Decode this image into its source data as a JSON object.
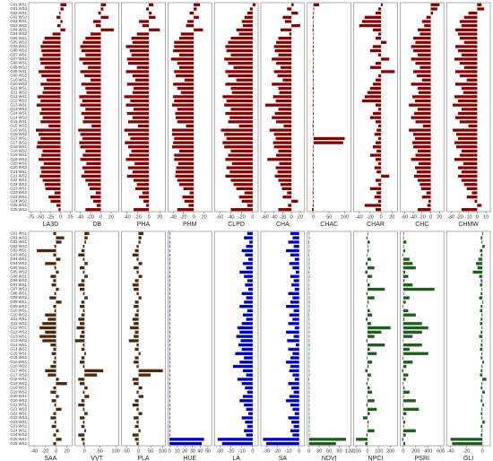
{
  "chart_data": [
    {
      "type": "bar",
      "orientation": "horizontal",
      "title": "LA3D",
      "color": "#8b0000",
      "categories": [
        "G01 WS1",
        "G01 WS2",
        "G02 WS1",
        "G02 WS2",
        "G03 WS1",
        "G03 WS2",
        "G04 WS1",
        "G04 WS2",
        "G05 WS1",
        "G05 WS2",
        "G06 WS1",
        "G06 WS2",
        "G07 WS1",
        "G07 WS2",
        "G08 WS1",
        "G08 WS2",
        "G09 WS1",
        "G09 WS2",
        "G10 WS1",
        "G10 WS2",
        "G11 WS1",
        "G11 WS2",
        "G12 WS1",
        "G12 WS2",
        "G13 WS1",
        "G13 WS2",
        "G14 WS1",
        "G14 WS2",
        "G15 WS1",
        "G15 WS2",
        "G16 WS1",
        "G16 WS2",
        "G17 WS1",
        "G17 WS2",
        "G18 WS1",
        "G18 WS2",
        "G19 WS1",
        "G19 WS2",
        "G20 WS1",
        "G20 WS2",
        "G21 WS1",
        "G21 WS2",
        "G22 WS1",
        "G22 WS2",
        "G23 WS1",
        "G23 WS2",
        "G24 WS1",
        "G24 WS2",
        "G25 WS1",
        "G25 WS2"
      ],
      "xlim": [
        -80,
        30
      ],
      "xticks": [
        -75,
        -50,
        -25,
        0,
        25
      ],
      "values": [
        15,
        8,
        -3,
        -10,
        5,
        -8,
        12,
        -20,
        -40,
        -45,
        -50,
        -48,
        -45,
        -52,
        -50,
        -40,
        -55,
        -48,
        -35,
        -50,
        -42,
        -45,
        -58,
        -50,
        -60,
        -48,
        -52,
        -45,
        -50,
        -30,
        -62,
        -55,
        -50,
        -58,
        -60,
        -45,
        -48,
        -55,
        -42,
        -50,
        -48,
        -52,
        -45,
        -40,
        -38,
        -15,
        -30,
        -25,
        -10,
        -5
      ]
    },
    {
      "type": "bar",
      "orientation": "horizontal",
      "title": "DB",
      "color": "#8b0000",
      "xlim": [
        -50,
        35
      ],
      "xticks": [
        -40,
        -20,
        0,
        20
      ],
      "values": [
        10,
        5,
        -5,
        15,
        -15,
        -10,
        25,
        -20,
        -30,
        -35,
        -40,
        -38,
        -30,
        -42,
        -35,
        -25,
        -40,
        -32,
        -20,
        -38,
        -30,
        -28,
        -42,
        -36,
        -40,
        -30,
        -38,
        -32,
        -35,
        -18,
        -44,
        -40,
        -36,
        -42,
        -40,
        -30,
        -35,
        -40,
        -28,
        -36,
        -32,
        -38,
        -30,
        -25,
        -22,
        -10,
        -20,
        -15,
        -8,
        -30
      ]
    },
    {
      "type": "bar",
      "orientation": "horizontal",
      "title": "PHA",
      "color": "#8b0000",
      "xlim": [
        -50,
        30
      ],
      "xticks": [
        -40,
        -20,
        0,
        20
      ],
      "values": [
        8,
        -5,
        5,
        12,
        -18,
        -12,
        20,
        -22,
        -32,
        -30,
        -42,
        -35,
        -32,
        -40,
        -38,
        -22,
        -42,
        -30,
        -25,
        -40,
        -28,
        -30,
        -45,
        -34,
        -42,
        -28,
        -40,
        -30,
        -38,
        -20,
        -45,
        -38,
        -34,
        -44,
        -38,
        -32,
        -36,
        -42,
        -26,
        -38,
        -30,
        -40,
        -28,
        -22,
        -25,
        -12,
        -18,
        -10,
        -5,
        -28
      ]
    },
    {
      "type": "bar",
      "orientation": "horizontal",
      "title": "PHM",
      "color": "#8b0000",
      "xlim": [
        -50,
        35
      ],
      "xticks": [
        -40,
        -20,
        0,
        20
      ],
      "values": [
        12,
        6,
        -8,
        10,
        -12,
        -15,
        18,
        -25,
        -28,
        -38,
        -38,
        -40,
        -28,
        -44,
        -32,
        -28,
        -38,
        -35,
        -18,
        -40,
        -32,
        -25,
        -40,
        -38,
        -42,
        -32,
        -36,
        -35,
        -32,
        -15,
        -42,
        -42,
        -38,
        -40,
        -42,
        -28,
        -38,
        -38,
        -30,
        -34,
        -35,
        -36,
        -32,
        -28,
        -20,
        -8,
        -22,
        -18,
        -10,
        -32
      ]
    },
    {
      "type": "bar",
      "orientation": "horizontal",
      "title": "CLPD",
      "color": "#8b0000",
      "xlim": [
        -70,
        10
      ],
      "xticks": [
        -60,
        -40,
        -20,
        0
      ],
      "values": [
        5,
        -5,
        -10,
        -15,
        -20,
        -18,
        -30,
        -25,
        -40,
        -45,
        -50,
        -48,
        -40,
        -52,
        -45,
        -35,
        -50,
        -45,
        -30,
        -50,
        -40,
        -38,
        -55,
        -48,
        -52,
        -40,
        -50,
        -42,
        -45,
        -25,
        -58,
        -52,
        -48,
        -55,
        -52,
        -40,
        -45,
        -50,
        -38,
        -48,
        -42,
        -50,
        -40,
        -35,
        -30,
        -15,
        -25,
        -20,
        -10,
        -40
      ]
    },
    {
      "type": "bar",
      "orientation": "horizontal",
      "title": "CHA",
      "color": "#8b0000",
      "xlim": [
        -70,
        30
      ],
      "xticks": [
        -60,
        -40,
        -20,
        0,
        20
      ],
      "values": [
        5,
        -10,
        15,
        -20,
        -15,
        20,
        -25,
        -5,
        -30,
        -35,
        -40,
        -38,
        -30,
        -45,
        -35,
        -25,
        -40,
        -32,
        -20,
        -45,
        -30,
        -28,
        -42,
        -36,
        -60,
        -30,
        -38,
        -45,
        -35,
        -18,
        -50,
        -40,
        -36,
        -42,
        -40,
        -30,
        -35,
        -55,
        -28,
        -36,
        -32,
        -38,
        -30,
        -25,
        -22,
        -10,
        -20,
        15,
        -8,
        -30
      ]
    },
    {
      "type": "bar",
      "orientation": "horizontal",
      "title": "CHAC",
      "color": "#8b0000",
      "xlim": [
        -20,
        120
      ],
      "xticks": [
        0,
        50,
        100
      ],
      "values": [
        18,
        2,
        -2,
        -3,
        -1,
        -2,
        -3,
        -1,
        -2,
        -1,
        -2,
        -3,
        -1,
        -2,
        -1,
        -2,
        -3,
        -1,
        -2,
        -1,
        -3,
        -2,
        -1,
        -2,
        -3,
        -1,
        -2,
        -1,
        -2,
        -3,
        -1,
        -2,
        100,
        95,
        -2,
        -1,
        -3,
        -2,
        -1,
        -2,
        -3,
        -1,
        -2,
        -1,
        -2,
        -3,
        -1,
        -2,
        -3,
        -5
      ]
    },
    {
      "type": "bar",
      "orientation": "horizontal",
      "title": "CHAR",
      "color": "#8b0000",
      "xlim": [
        -50,
        30
      ],
      "xticks": [
        -40,
        -20,
        0,
        20
      ],
      "values": [
        3,
        -5,
        -10,
        -30,
        -35,
        -40,
        -15,
        -5,
        -10,
        10,
        -15,
        -20,
        -5,
        15,
        -10,
        -20,
        25,
        -5,
        -10,
        -15,
        -20,
        -25,
        -30,
        -35,
        -10,
        -5,
        -15,
        -20,
        -10,
        -5,
        -8,
        -12,
        -5,
        -10,
        -15,
        -8,
        -20,
        -10,
        -5,
        -12,
        -8,
        15,
        -10,
        -5,
        -20,
        -8,
        -12,
        -5,
        -30,
        -10
      ]
    },
    {
      "type": "bar",
      "orientation": "horizontal",
      "title": "CHC",
      "color": "#8b0000",
      "xlim": [
        -70,
        30
      ],
      "xticks": [
        -60,
        -40,
        -20,
        0,
        20
      ],
      "values": [
        20,
        15,
        5,
        -10,
        -20,
        -15,
        -30,
        -25,
        -40,
        -35,
        -45,
        -40,
        -30,
        -45,
        -35,
        -25,
        -40,
        -32,
        -20,
        -45,
        -30,
        -28,
        -42,
        -36,
        -50,
        -30,
        -38,
        -45,
        -35,
        -18,
        -50,
        -40,
        -36,
        -42,
        -40,
        -30,
        -35,
        -45,
        -28,
        -36,
        -32,
        -38,
        -30,
        -25,
        -22,
        -10,
        -20,
        -5,
        -8,
        -30
      ]
    },
    {
      "type": "bar",
      "orientation": "horizontal",
      "title": "CHMW",
      "color": "#8b0000",
      "xlim": [
        -35,
        15
      ],
      "xticks": [
        -30,
        -20,
        -10,
        0,
        10
      ],
      "values": [
        5,
        8,
        -10,
        -15,
        -20,
        -18,
        -25,
        -22,
        -20,
        -15,
        -25,
        -22,
        -18,
        -26,
        -20,
        -15,
        -25,
        -20,
        -12,
        -25,
        -18,
        -16,
        -26,
        -22,
        -28,
        -18,
        -22,
        -25,
        -20,
        -10,
        -28,
        -24,
        -22,
        -26,
        -24,
        -18,
        -20,
        -26,
        -16,
        -22,
        -18,
        -22,
        -18,
        -15,
        -12,
        -6,
        -12,
        -3,
        5,
        -18
      ]
    },
    {
      "type": "bar",
      "orientation": "horizontal",
      "title": "SAA",
      "color": "#4a2a0c",
      "categories": [
        "G01 WS1",
        "G01 WS2",
        "G02 WS1",
        "G02 WS2",
        "G03 WS1",
        "G03 WS2",
        "G04 WS1",
        "G04 WS2",
        "G05 WS1",
        "G05 WS2",
        "G06 WS1",
        "G06 WS2",
        "G07 WS1",
        "G07 WS2",
        "G08 WS1",
        "G08 WS2",
        "G09 WS1",
        "G09 WS2",
        "G10 WS1",
        "G10 WS2",
        "G11 WS1",
        "G11 WS2",
        "G12 WS1",
        "G12 WS2",
        "G13 WS1",
        "G13 WS2",
        "G14 WS1",
        "G14 WS2",
        "G15 WS1",
        "G15 WS2",
        "G16 WS1",
        "G16 WS2",
        "G17 WS1",
        "G17 WS2",
        "G18 WS1",
        "G18 WS2",
        "G19 WS1",
        "G19 WS2",
        "G20 WS1",
        "G20 WS2",
        "G21 WS1",
        "G21 WS2",
        "G22 WS1",
        "G22 WS2",
        "G23 WS1",
        "G23 WS2",
        "G24 WS1",
        "G24 WS2",
        "G25 WS1",
        "G25 WS2"
      ],
      "xlim": [
        -50,
        30
      ],
      "xticks": [
        -40,
        -20,
        0,
        20
      ],
      "values": [
        -5,
        15,
        10,
        -3,
        -35,
        -5,
        8,
        -20,
        -3,
        5,
        -10,
        -5,
        -8,
        5,
        -3,
        -12,
        10,
        -5,
        -3,
        -20,
        -15,
        -25,
        -30,
        -20,
        -30,
        -25,
        -10,
        -5,
        -8,
        -3,
        -5,
        -10,
        -20,
        -15,
        5,
        20,
        -5,
        -10,
        5,
        -8,
        -3,
        10,
        -5,
        -10,
        -3,
        -8,
        5,
        -5,
        10,
        -5
      ]
    },
    {
      "type": "bar",
      "orientation": "horizontal",
      "title": "VVT",
      "color": "#4a2a0c",
      "xlim": [
        -30,
        110
      ],
      "xticks": [
        0,
        50,
        100
      ],
      "values": [
        15,
        10,
        5,
        -5,
        -10,
        -20,
        -5,
        10,
        -15,
        -5,
        10,
        -10,
        -20,
        -15,
        -5,
        10,
        -10,
        -15,
        -5,
        -10,
        -20,
        -15,
        -25,
        -10,
        -15,
        -30,
        -5,
        -10,
        5,
        -10,
        -15,
        -5,
        60,
        40,
        -20,
        -15,
        10,
        -5,
        15,
        -10,
        -20,
        -5,
        10,
        -15,
        -5,
        -10,
        5,
        -20,
        -10,
        -5
      ]
    },
    {
      "type": "bar",
      "orientation": "horizontal",
      "title": "PLA",
      "color": "#4a2a0c",
      "xlim": [
        -70,
        110
      ],
      "xticks": [
        -50,
        0,
        50,
        100
      ],
      "values": [
        20,
        12,
        8,
        -8,
        -15,
        -25,
        -8,
        15,
        -20,
        -8,
        15,
        -15,
        -25,
        -20,
        -8,
        12,
        -15,
        -20,
        -8,
        -15,
        -25,
        -20,
        -35,
        -15,
        -20,
        -40,
        -8,
        -15,
        8,
        -15,
        -20,
        -8,
        100,
        50,
        -25,
        -20,
        15,
        -8,
        20,
        -15,
        -25,
        -8,
        15,
        -20,
        -8,
        -15,
        8,
        -25,
        -15,
        -8
      ]
    },
    {
      "type": "bar",
      "orientation": "horizontal",
      "title": "HUE",
      "color": "#0000cc",
      "xlim": [
        -2,
        55
      ],
      "xticks": [
        0,
        10,
        20,
        30,
        40,
        50
      ],
      "values": [
        0.5,
        0.3,
        0.5,
        0.2,
        0.4,
        0.3,
        0.5,
        0.6,
        0.3,
        0.2,
        0.4,
        0.5,
        0.3,
        0.2,
        0.4,
        0.3,
        0.5,
        0.2,
        0.3,
        0.4,
        0.2,
        0.5,
        0.3,
        0.4,
        0.2,
        0.3,
        0.5,
        0.4,
        0.3,
        0.2,
        0.4,
        0.3,
        0.5,
        0.2,
        0.3,
        0.4,
        0.2,
        0.5,
        0.3,
        0.4,
        0.2,
        0.3,
        0.5,
        0.4,
        0.3,
        0.2,
        0.4,
        0.3,
        45,
        42
      ]
    },
    {
      "type": "bar",
      "orientation": "horizontal",
      "title": "LA",
      "color": "#0000cc",
      "xlim": [
        -35,
        5
      ],
      "xticks": [
        -30,
        -20,
        -10,
        0
      ],
      "values": [
        -5,
        -8,
        -3,
        -6,
        -10,
        -7,
        -4,
        -9,
        -6,
        -12,
        -8,
        -5,
        -7,
        -4,
        -10,
        -6,
        -8,
        -12,
        -5,
        -9,
        -6,
        -10,
        -14,
        -12,
        -15,
        -11,
        -13,
        -10,
        -16,
        -8,
        -12,
        -18,
        -9,
        -6,
        -14,
        -10,
        -7,
        -5,
        -9,
        -12,
        -8,
        -6,
        -4,
        -10,
        -7,
        -5,
        -8,
        -6,
        -32,
        -28
      ]
    },
    {
      "type": "bar",
      "orientation": "horizontal",
      "title": "SA",
      "color": "#0000cc",
      "xlim": [
        -35,
        5
      ],
      "xticks": [
        -30,
        -20,
        -10,
        0
      ],
      "values": [
        -8,
        -6,
        -10,
        -5,
        -12,
        -8,
        -4,
        -9,
        -6,
        -3,
        -8,
        -5,
        -7,
        -4,
        -10,
        -6,
        -8,
        -12,
        -5,
        -9,
        -6,
        -10,
        -4,
        -12,
        -5,
        -11,
        -3,
        -10,
        -6,
        -8,
        -12,
        -8,
        -9,
        -6,
        -4,
        -10,
        -7,
        -5,
        -9,
        -12,
        -8,
        -6,
        -4,
        -10,
        -7,
        -5,
        -8,
        -6,
        -33,
        -30
      ]
    },
    {
      "type": "bar",
      "orientation": "horizontal",
      "title": "NDVI",
      "color": "#1e5e1e",
      "xlim": [
        -5,
        125
      ],
      "xticks": [
        0,
        30,
        60,
        90,
        120
      ],
      "values": [
        1,
        0.5,
        -1,
        0.5,
        1,
        -0.5,
        0.5,
        1,
        2,
        -1,
        0.5,
        1,
        0.5,
        -0.5,
        1,
        0.5,
        2,
        1,
        0.5,
        -1,
        0.5,
        1,
        0.5,
        1,
        0.5,
        1,
        2,
        0.5,
        1,
        0.5,
        1,
        0.5,
        1,
        0.5,
        -1,
        0.5,
        1,
        0.5,
        1,
        0.5,
        1,
        0.5,
        1,
        2,
        0.5,
        1,
        0.5,
        1,
        110,
        80
      ]
    },
    {
      "type": "bar",
      "orientation": "horizontal",
      "title": "NPCI",
      "color": "#1e5e1e",
      "xlim": [
        -120,
        260
      ],
      "xticks": [
        -100,
        0,
        100,
        200
      ],
      "values": [
        5,
        -10,
        20,
        0,
        10,
        -5,
        30,
        -15,
        60,
        -20,
        40,
        -5,
        20,
        150,
        -10,
        60,
        10,
        -5,
        20,
        40,
        -15,
        30,
        200,
        120,
        60,
        -10,
        150,
        20,
        80,
        -5,
        40,
        10,
        -20,
        30,
        10,
        -10,
        20,
        40,
        -5,
        60,
        -10,
        80,
        20,
        -40,
        10,
        5,
        60,
        -10,
        -100,
        -20
      ]
    },
    {
      "type": "bar",
      "orientation": "horizontal",
      "title": "PSRI",
      "color": "#1e5e1e",
      "xlim": [
        -50,
        650
      ],
      "xticks": [
        0,
        200,
        400,
        600
      ],
      "values": [
        5,
        10,
        50,
        0,
        30,
        -10,
        100,
        150,
        200,
        30,
        80,
        20,
        150,
        500,
        10,
        100,
        40,
        -10,
        80,
        200,
        20,
        300,
        400,
        300,
        150,
        -5,
        300,
        100,
        400,
        -10,
        150,
        50,
        -20,
        80,
        40,
        -10,
        20,
        100,
        10,
        200,
        -5,
        250,
        50,
        -10,
        30,
        10,
        200,
        40,
        -20,
        30
      ]
    },
    {
      "type": "bar",
      "orientation": "horizontal",
      "title": "GLI",
      "color": "#1e5e1e",
      "xlim": [
        -45,
        10
      ],
      "xticks": [
        -40,
        -20,
        0
      ],
      "values": [
        1,
        -2,
        -1,
        3,
        -3,
        -2,
        -5,
        -8,
        -6,
        -12,
        -4,
        -2,
        -3,
        -1,
        -2,
        -4,
        1,
        -2,
        -3,
        -1,
        -2,
        -3,
        -1,
        -2,
        -4,
        -1,
        -2,
        -3,
        -1,
        -2,
        2,
        -1,
        -2,
        -3,
        5,
        -1,
        -2,
        3,
        -1,
        -2,
        2,
        -1,
        -2,
        -1,
        3,
        -2,
        -1,
        -2,
        -40,
        -38
      ]
    }
  ]
}
